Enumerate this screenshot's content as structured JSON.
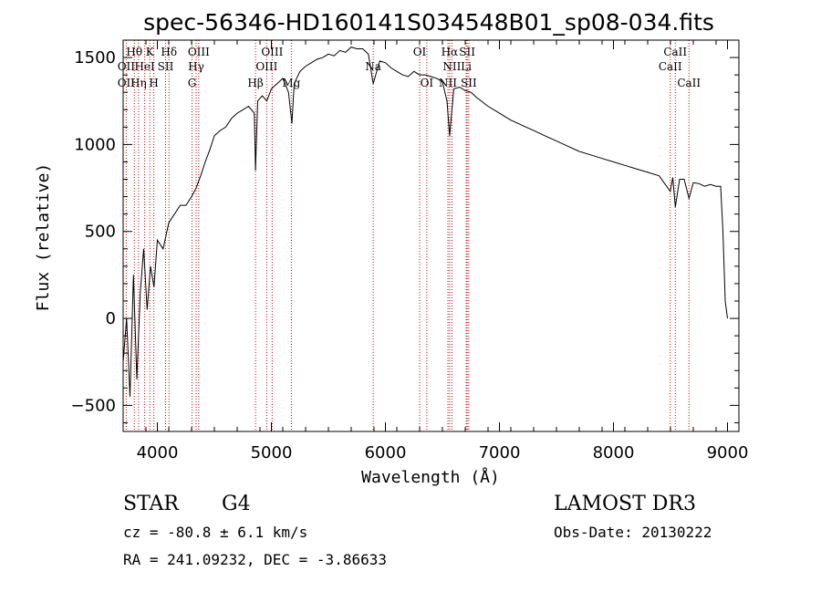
{
  "chart_data": {
    "type": "line",
    "title": "spec-56346-HD160141S034548B01_sp08-034.fits",
    "xlabel": "Wavelength (Å)",
    "ylabel": "Flux (relative)",
    "xlim": [
      3700,
      9100
    ],
    "ylim": [
      -650,
      1600
    ],
    "x_ticks": [
      4000,
      5000,
      6000,
      7000,
      8000,
      9000
    ],
    "y_ticks": [
      -500,
      0,
      500,
      1000,
      1500
    ],
    "series": [
      {
        "name": "flux",
        "x": [
          3700,
          3730,
          3760,
          3790,
          3820,
          3850,
          3880,
          3910,
          3940,
          3970,
          4000,
          4050,
          4100,
          4150,
          4200,
          4250,
          4300,
          4340,
          4380,
          4420,
          4460,
          4500,
          4550,
          4600,
          4650,
          4700,
          4750,
          4800,
          4850,
          4861,
          4880,
          4920,
          4960,
          5000,
          5050,
          5100,
          5150,
          5180,
          5200,
          5250,
          5300,
          5350,
          5400,
          5450,
          5500,
          5550,
          5600,
          5650,
          5700,
          5750,
          5800,
          5850,
          5893,
          5950,
          6000,
          6050,
          6100,
          6150,
          6200,
          6250,
          6300,
          6350,
          6400,
          6450,
          6500,
          6540,
          6563,
          6600,
          6650,
          6700,
          6750,
          6800,
          6900,
          7000,
          7100,
          7200,
          7300,
          7400,
          7500,
          7600,
          7700,
          7800,
          7900,
          8000,
          8100,
          8200,
          8300,
          8400,
          8498,
          8520,
          8542,
          8580,
          8620,
          8662,
          8700,
          8750,
          8800,
          8850,
          8900,
          8940,
          8960,
          8980,
          9000
        ],
        "y": [
          -250,
          0,
          -450,
          250,
          -350,
          150,
          400,
          50,
          300,
          180,
          450,
          400,
          550,
          600,
          650,
          650,
          700,
          750,
          820,
          900,
          970,
          1050,
          1080,
          1100,
          1150,
          1180,
          1200,
          1220,
          1180,
          850,
          1250,
          1280,
          1250,
          1320,
          1350,
          1380,
          1300,
          1120,
          1350,
          1420,
          1450,
          1470,
          1490,
          1500,
          1520,
          1510,
          1540,
          1530,
          1560,
          1550,
          1550,
          1520,
          1350,
          1480,
          1470,
          1440,
          1420,
          1400,
          1390,
          1420,
          1400,
          1400,
          1390,
          1380,
          1360,
          1250,
          1050,
          1320,
          1330,
          1310,
          1300,
          1270,
          1220,
          1180,
          1140,
          1110,
          1080,
          1050,
          1020,
          990,
          960,
          940,
          920,
          900,
          880,
          860,
          840,
          820,
          730,
          810,
          640,
          800,
          800,
          690,
          780,
          775,
          760,
          770,
          760,
          760,
          500,
          100,
          0
        ]
      }
    ],
    "spectral_lines": [
      {
        "label": "Hθ",
        "x": 3798,
        "row": 1
      },
      {
        "label": "OII",
        "x": 3727,
        "row": 2
      },
      {
        "label": "OII",
        "x": 3727,
        "row": 3
      },
      {
        "label": "K",
        "x": 3934,
        "row": 1
      },
      {
        "label": "HeI",
        "x": 3889,
        "row": 2
      },
      {
        "label": "Hη",
        "x": 3835,
        "row": 3
      },
      {
        "label": "SII",
        "x": 4072,
        "row": 2
      },
      {
        "label": "H",
        "x": 3969,
        "row": 3
      },
      {
        "label": "Hδ",
        "x": 4102,
        "row": 1
      },
      {
        "label": "OIII",
        "x": 4363,
        "row": 1
      },
      {
        "label": "Hγ",
        "x": 4340,
        "row": 2
      },
      {
        "label": "G",
        "x": 4304,
        "row": 3
      },
      {
        "label": "OIII",
        "x": 5007,
        "row": 1
      },
      {
        "label": "OIII",
        "x": 4959,
        "row": 2
      },
      {
        "label": "Hβ",
        "x": 4861,
        "row": 3
      },
      {
        "label": "Mg",
        "x": 5175,
        "row": 3
      },
      {
        "label": "Na",
        "x": 5893,
        "row": 2
      },
      {
        "label": "OI",
        "x": 6300,
        "row": 1
      },
      {
        "label": "OI",
        "x": 6363,
        "row": 3
      },
      {
        "label": "Hα",
        "x": 6563,
        "row": 1
      },
      {
        "label": "SII",
        "x": 6717,
        "row": 1
      },
      {
        "label": "NII",
        "x": 6583,
        "row": 2
      },
      {
        "label": "Li",
        "x": 6708,
        "row": 2
      },
      {
        "label": "NII",
        "x": 6548,
        "row": 3
      },
      {
        "label": "SII",
        "x": 6731,
        "row": 3
      },
      {
        "label": "CaII",
        "x": 8542,
        "row": 1
      },
      {
        "label": "CaII",
        "x": 8498,
        "row": 2
      },
      {
        "label": "CaII",
        "x": 8662,
        "row": 3
      }
    ]
  },
  "info": {
    "classification": "STAR",
    "subclass": "G4",
    "survey": "LAMOST DR3",
    "cz": "cz = -80.8 ± 6.1 km/s",
    "obs_date": "Obs-Date: 20130222",
    "coords": "RA = 241.09232, DEC =  -3.86633"
  }
}
